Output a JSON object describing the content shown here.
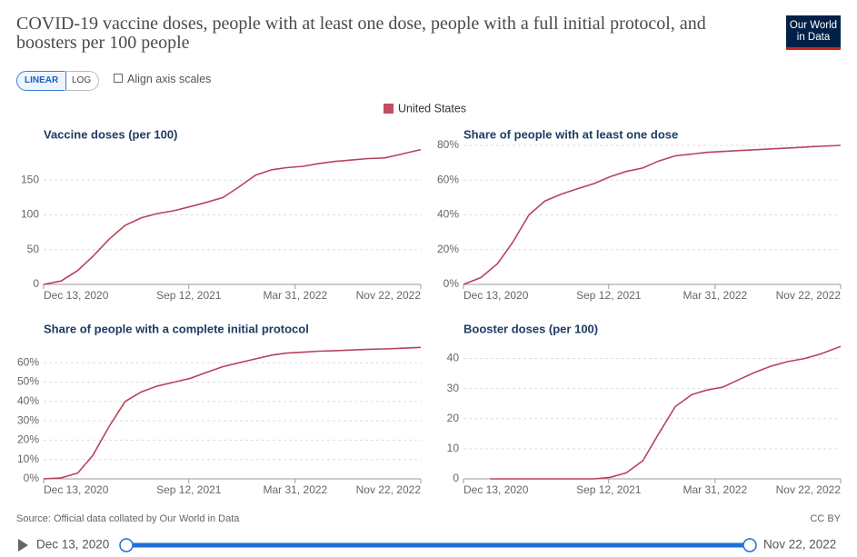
{
  "title": "COVID-19 vaccine doses, people with at least one dose, people with a full initial protocol, and boosters per 100 people",
  "logo": [
    "Our World",
    "in Data"
  ],
  "controls": {
    "scale_buttons": [
      "LINEAR",
      "LOG"
    ],
    "align_label": "Align axis scales"
  },
  "legend": {
    "entries": [
      {
        "name": "United States",
        "color": "#c24e62"
      }
    ]
  },
  "source": "Source: Official data collated by Our World in Data",
  "license": "CC BY",
  "timeline": {
    "start": "Dec 13, 2020",
    "end": "Nov 22, 2022"
  },
  "chart_data": [
    {
      "type": "line",
      "title": "Vaccine doses (per 100)",
      "color": "#b8435a",
      "grid": true,
      "x": [
        "2020-12-13",
        "2021-01-15",
        "2021-02-15",
        "2021-03-15",
        "2021-04-15",
        "2021-05-15",
        "2021-06-15",
        "2021-07-15",
        "2021-08-15",
        "2021-09-15",
        "2021-10-15",
        "2021-11-15",
        "2021-12-15",
        "2022-01-15",
        "2022-02-15",
        "2022-03-15",
        "2022-04-15",
        "2022-05-15",
        "2022-06-15",
        "2022-07-15",
        "2022-08-15",
        "2022-09-15",
        "2022-10-15",
        "2022-11-22"
      ],
      "values": [
        0,
        5,
        20,
        40,
        65,
        85,
        96,
        102,
        106,
        112,
        118,
        125,
        140,
        157,
        165,
        168,
        170,
        174,
        177,
        179,
        181,
        182,
        187,
        194
      ],
      "xlim": [
        "2020-12-13",
        "2022-11-22"
      ],
      "xticks": [
        {
          "value": "2020-12-13",
          "label": "Dec 13, 2020"
        },
        {
          "value": "2021-09-12",
          "label": "Sep 12, 2021"
        },
        {
          "value": "2022-03-31",
          "label": "Mar 31, 2022"
        },
        {
          "value": "2022-11-22",
          "label": "Nov 22, 2022"
        }
      ],
      "ylim": [
        0,
        200
      ],
      "yticks": [
        0,
        50,
        100,
        150
      ]
    },
    {
      "type": "line",
      "title": "Share of people with at least one dose",
      "color": "#b8435a",
      "grid": true,
      "x": [
        "2020-12-13",
        "2021-01-15",
        "2021-02-15",
        "2021-03-15",
        "2021-04-15",
        "2021-05-15",
        "2021-06-15",
        "2021-07-15",
        "2021-08-15",
        "2021-09-15",
        "2021-10-15",
        "2021-11-15",
        "2021-12-15",
        "2022-01-15",
        "2022-02-15",
        "2022-03-15",
        "2022-04-15",
        "2022-05-15",
        "2022-06-15",
        "2022-07-15",
        "2022-08-15",
        "2022-09-15",
        "2022-10-15",
        "2022-11-22"
      ],
      "values": [
        0,
        4,
        12,
        24,
        40,
        48,
        52,
        55,
        58,
        62,
        65,
        67,
        71,
        74,
        75,
        76,
        76.5,
        77,
        77.5,
        78,
        78.5,
        79,
        79.5,
        80
      ],
      "xlim": [
        "2020-12-13",
        "2022-11-22"
      ],
      "xticks": [
        {
          "value": "2020-12-13",
          "label": "Dec 13, 2020"
        },
        {
          "value": "2021-09-12",
          "label": "Sep 12, 2021"
        },
        {
          "value": "2022-03-31",
          "label": "Mar 31, 2022"
        },
        {
          "value": "2022-11-22",
          "label": "Nov 22, 2022"
        }
      ],
      "ylim": [
        0,
        80
      ],
      "yticks": [
        {
          "value": 0,
          "label": "0%"
        },
        {
          "value": 20,
          "label": "20%"
        },
        {
          "value": 40,
          "label": "40%"
        },
        {
          "value": 60,
          "label": "60%"
        },
        {
          "value": 80,
          "label": "80%"
        }
      ]
    },
    {
      "type": "line",
      "title": "Share of people with a complete initial protocol",
      "color": "#b8435a",
      "grid": true,
      "x": [
        "2020-12-13",
        "2021-01-15",
        "2021-02-15",
        "2021-03-15",
        "2021-04-15",
        "2021-05-15",
        "2021-06-15",
        "2021-07-15",
        "2021-08-15",
        "2021-09-15",
        "2021-10-15",
        "2021-11-15",
        "2021-12-15",
        "2022-01-15",
        "2022-02-15",
        "2022-03-15",
        "2022-04-15",
        "2022-05-15",
        "2022-06-15",
        "2022-07-15",
        "2022-08-15",
        "2022-09-15",
        "2022-10-15",
        "2022-11-22"
      ],
      "values": [
        0,
        0.5,
        3,
        12,
        27,
        40,
        45,
        48,
        50,
        52,
        55,
        58,
        60,
        62,
        64,
        65,
        65.5,
        66,
        66.3,
        66.6,
        67,
        67.2,
        67.5,
        68
      ],
      "xlim": [
        "2020-12-13",
        "2022-11-22"
      ],
      "xticks": [
        {
          "value": "2020-12-13",
          "label": "Dec 13, 2020"
        },
        {
          "value": "2021-09-12",
          "label": "Sep 12, 2021"
        },
        {
          "value": "2022-03-31",
          "label": "Mar 31, 2022"
        },
        {
          "value": "2022-11-22",
          "label": "Nov 22, 2022"
        }
      ],
      "ylim": [
        0,
        70
      ],
      "yticks": [
        {
          "value": 0,
          "label": "0%"
        },
        {
          "value": 10,
          "label": "10%"
        },
        {
          "value": 20,
          "label": "20%"
        },
        {
          "value": 30,
          "label": "30%"
        },
        {
          "value": 40,
          "label": "40%"
        },
        {
          "value": 50,
          "label": "50%"
        },
        {
          "value": 60,
          "label": "60%"
        }
      ]
    },
    {
      "type": "line",
      "title": "Booster doses (per 100)",
      "color": "#b8435a",
      "grid": true,
      "x": [
        "2021-02-01",
        "2021-04-15",
        "2021-06-15",
        "2021-08-15",
        "2021-09-15",
        "2021-10-15",
        "2021-11-15",
        "2021-12-15",
        "2022-01-15",
        "2022-02-15",
        "2022-03-15",
        "2022-04-15",
        "2022-05-15",
        "2022-06-15",
        "2022-07-15",
        "2022-08-15",
        "2022-09-15",
        "2022-10-15",
        "2022-11-22"
      ],
      "values": [
        0,
        0,
        0,
        0,
        0.5,
        2,
        6,
        15,
        24,
        28,
        29.5,
        30.5,
        33,
        35.5,
        37.5,
        39,
        40,
        41.5,
        44
      ],
      "xlim": [
        "2020-12-13",
        "2022-11-22"
      ],
      "xticks": [
        {
          "value": "2020-12-13",
          "label": "Dec 13, 2020"
        },
        {
          "value": "2021-09-12",
          "label": "Sep 12, 2021"
        },
        {
          "value": "2022-03-31",
          "label": "Mar 31, 2022"
        },
        {
          "value": "2022-11-22",
          "label": "Nov 22, 2022"
        }
      ],
      "ylim": [
        0,
        45
      ],
      "yticks": [
        0,
        10,
        20,
        30,
        40
      ]
    }
  ]
}
